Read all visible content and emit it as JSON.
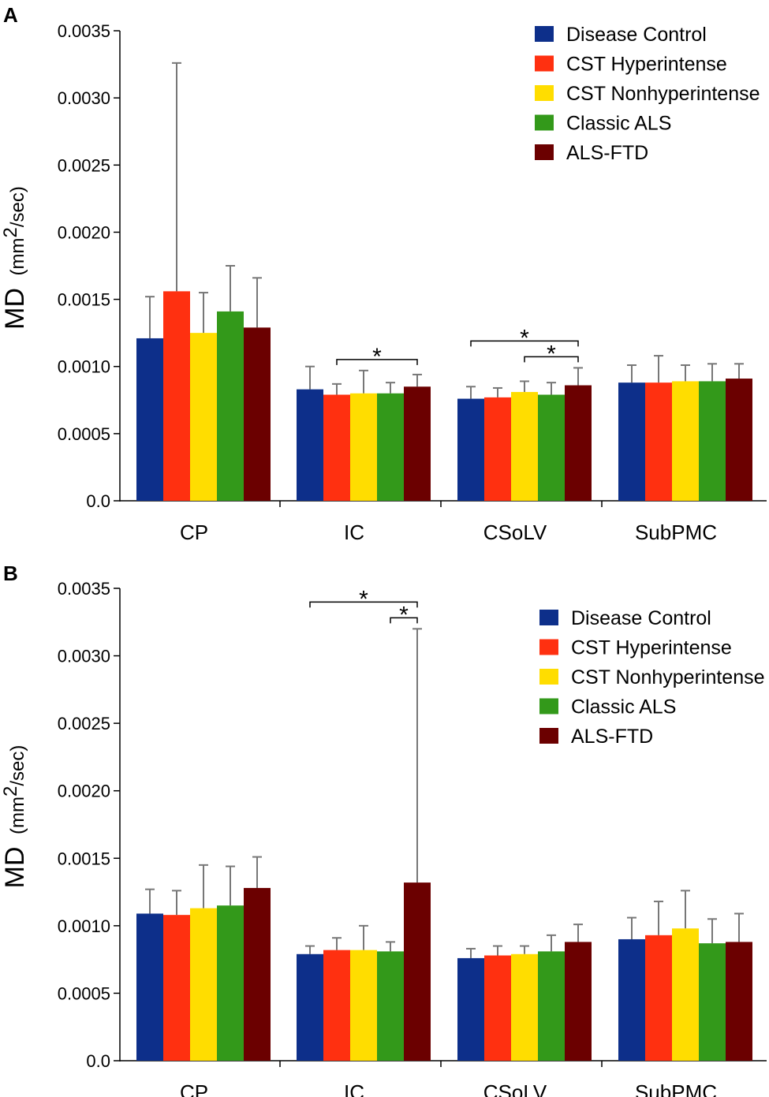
{
  "chart_data": [
    {
      "panel": "A",
      "type": "bar",
      "ylabel_main": "MD",
      "ylabel_unit_prefix": "(mm",
      "ylabel_unit_sup": "2",
      "ylabel_unit_suffix": "/sec)",
      "ylim": [
        0,
        0.0035
      ],
      "yticks": [
        "0.0",
        "0.0005",
        "0.0010",
        "0.0015",
        "0.0020",
        "0.0025",
        "0.0030",
        "0.0035"
      ],
      "categories": [
        "CP",
        "IC",
        "CSoLV",
        "SubPMC"
      ],
      "legend_position": "top-right",
      "series": [
        {
          "name": "Disease Control",
          "color": "#0d2f8a",
          "values": [
            0.00121,
            0.00083,
            0.00076,
            0.00088
          ],
          "errors": [
            0.00031,
            0.00017,
            9e-05,
            0.00013
          ]
        },
        {
          "name": "CST Hyperintense",
          "color": "#ff3010",
          "values": [
            0.00156,
            0.00079,
            0.00077,
            0.00088
          ],
          "errors": [
            0.0017,
            8e-05,
            7e-05,
            0.0002
          ]
        },
        {
          "name": "CST Nonhyperintense",
          "color": "#ffdd00",
          "values": [
            0.00125,
            0.0008,
            0.00081,
            0.00089
          ],
          "errors": [
            0.0003,
            0.00017,
            8e-05,
            0.00012
          ]
        },
        {
          "name": "Classic ALS",
          "color": "#33991a",
          "values": [
            0.00141,
            0.0008,
            0.00079,
            0.00089
          ],
          "errors": [
            0.00034,
            8e-05,
            9e-05,
            0.00013
          ]
        },
        {
          "name": "ALS-FTD",
          "color": "#6b0000",
          "values": [
            0.00129,
            0.00085,
            0.00086,
            0.00091
          ],
          "errors": [
            0.00037,
            9e-05,
            0.00013,
            0.00011
          ]
        }
      ],
      "significance": [
        {
          "category": "IC",
          "from_series": 1,
          "to_series": 4,
          "level": 1,
          "label": "*"
        },
        {
          "category": "CSoLV",
          "from_series": 0,
          "to_series": 4,
          "level": 2,
          "label": "*"
        },
        {
          "category": "CSoLV",
          "from_series": 2,
          "to_series": 4,
          "level": 1,
          "label": "*"
        }
      ]
    },
    {
      "panel": "B",
      "type": "bar",
      "ylabel_main": "MD",
      "ylabel_unit_prefix": "(mm",
      "ylabel_unit_sup": "2",
      "ylabel_unit_suffix": "/sec)",
      "ylim": [
        0,
        0.0035
      ],
      "yticks": [
        "0.0",
        "0.0005",
        "0.0010",
        "0.0015",
        "0.0020",
        "0.0025",
        "0.0030",
        "0.0035"
      ],
      "categories": [
        "CP",
        "IC",
        "CSoLV",
        "SubPMC"
      ],
      "legend_position": "right",
      "series": [
        {
          "name": "Disease Control",
          "color": "#0d2f8a",
          "values": [
            0.00109,
            0.00079,
            0.00076,
            0.0009
          ],
          "errors": [
            0.00018,
            6e-05,
            7e-05,
            0.00016
          ]
        },
        {
          "name": "CST Hyperintense",
          "color": "#ff3010",
          "values": [
            0.00108,
            0.00082,
            0.00078,
            0.00093
          ],
          "errors": [
            0.00018,
            9e-05,
            7e-05,
            0.00025
          ]
        },
        {
          "name": "CST Nonhyperintense",
          "color": "#ffdd00",
          "values": [
            0.00113,
            0.00082,
            0.00079,
            0.00098
          ],
          "errors": [
            0.00032,
            0.00018,
            6e-05,
            0.00028
          ]
        },
        {
          "name": "Classic ALS",
          "color": "#33991a",
          "values": [
            0.00115,
            0.00081,
            0.00081,
            0.00087
          ],
          "errors": [
            0.00029,
            7e-05,
            0.00012,
            0.00018
          ]
        },
        {
          "name": "ALS-FTD",
          "color": "#6b0000",
          "values": [
            0.00128,
            0.00132,
            0.00088,
            0.00088
          ],
          "errors": [
            0.00023,
            0.00188,
            0.00013,
            0.00021
          ]
        }
      ],
      "significance": [
        {
          "category": "IC",
          "from_series": 0,
          "to_series": 4,
          "level": 2,
          "label": "*"
        },
        {
          "category": "IC",
          "from_series": 3,
          "to_series": 4,
          "level": 1,
          "label": "*"
        }
      ]
    }
  ]
}
